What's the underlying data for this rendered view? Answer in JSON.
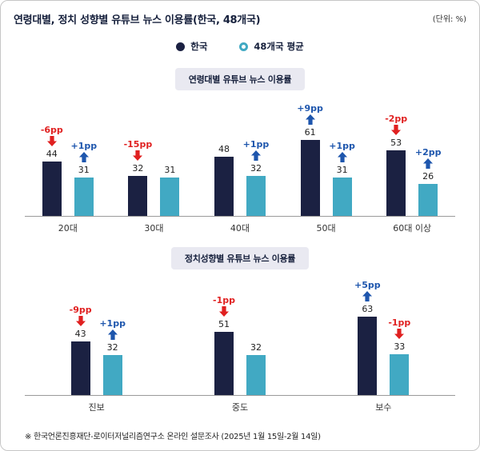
{
  "header": {
    "title": "연령대별, 정치 성향별 유튜브 뉴스 이용률(한국, 48개국)",
    "unit": "(단위: %)"
  },
  "legend": [
    {
      "label": "한국"
    },
    {
      "label": "48개국 평균"
    }
  ],
  "colors": {
    "korea": "#1b2142",
    "average": "#41a9c3",
    "negative": "#e02020",
    "positive": "#1e56ad",
    "badge_bg": "#e9e9f1",
    "title_text": "#16203c"
  },
  "chart_data": [
    {
      "type": "bar",
      "title": "연령대별 유튜브 뉴스 이용률",
      "categories": [
        "20대",
        "30대",
        "40대",
        "50대",
        "60대 이상"
      ],
      "series": [
        {
          "name": "한국",
          "values": [
            44,
            32,
            48,
            61,
            53
          ],
          "changes": [
            "-6pp",
            "-15pp",
            null,
            "+9pp",
            "-2pp"
          ]
        },
        {
          "name": "48개국 평균",
          "values": [
            31,
            31,
            32,
            31,
            26
          ],
          "changes": [
            "+1pp",
            null,
            "+1pp",
            "+1pp",
            "+2pp"
          ]
        }
      ],
      "ylim": [
        0,
        70
      ],
      "legend_position": "top",
      "grid": false
    },
    {
      "type": "bar",
      "title": "정치성향별 유튜브 뉴스 이용률",
      "categories": [
        "진보",
        "중도",
        "보수"
      ],
      "series": [
        {
          "name": "한국",
          "values": [
            43,
            51,
            63
          ],
          "changes": [
            "-9pp",
            "-1pp",
            "+5pp"
          ]
        },
        {
          "name": "48개국 평균",
          "values": [
            32,
            32,
            33
          ],
          "changes": [
            "+1pp",
            null,
            "-1pp"
          ]
        }
      ],
      "ylim": [
        0,
        70
      ],
      "legend_position": "top",
      "grid": false
    }
  ],
  "footnote": "※ 한국언론진흥재단-로이터저널리즘연구소 온라인 설문조사 (2025년 1월 15일-2월 14일)"
}
